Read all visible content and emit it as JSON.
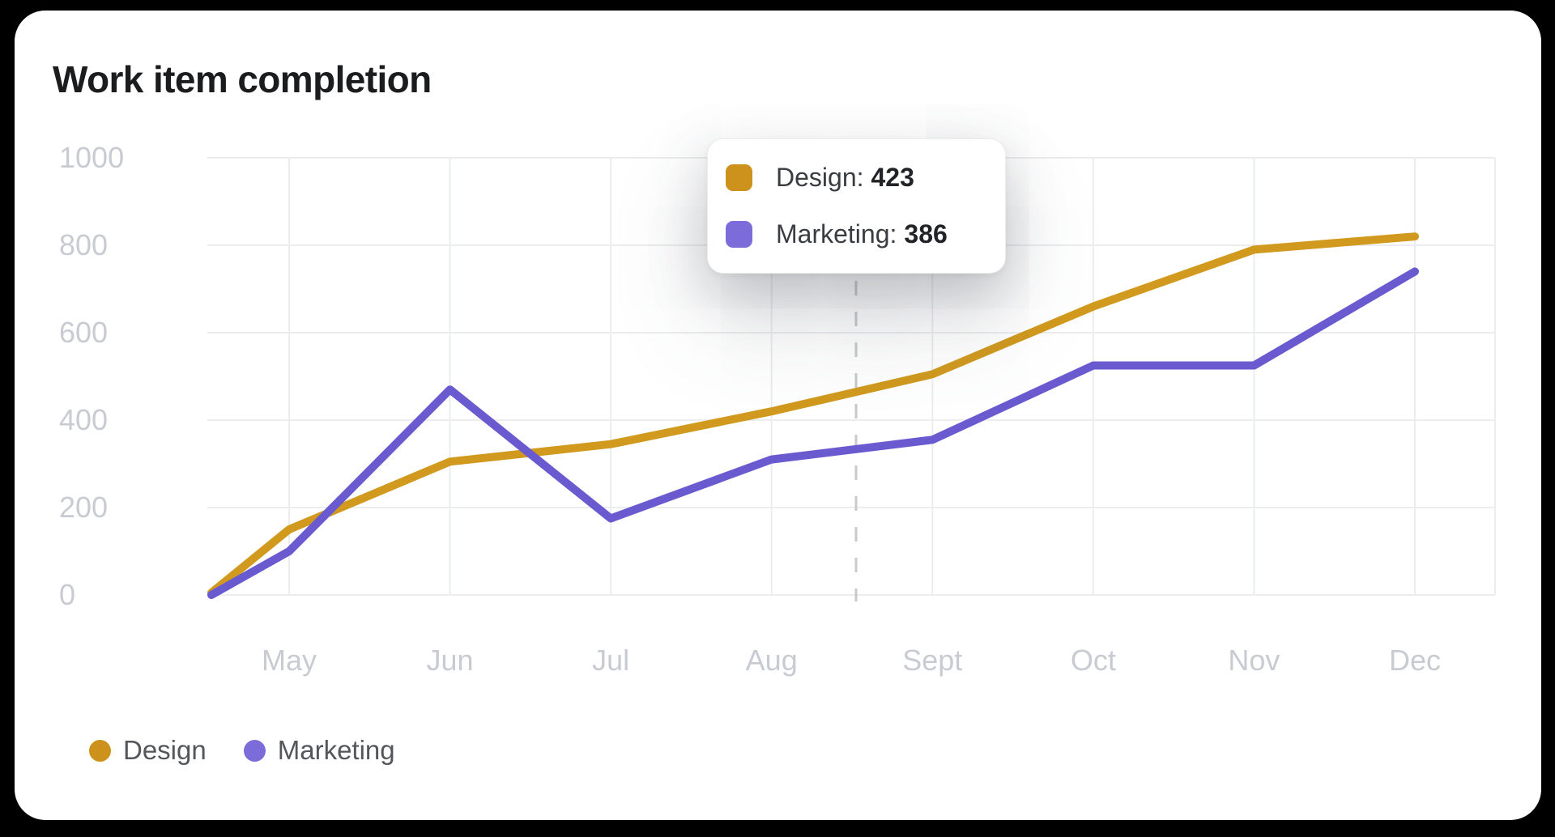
{
  "page": {
    "title": "Work item completion"
  },
  "chart_data": {
    "type": "line",
    "title": "Work item completion",
    "x_labels": [
      "May",
      "Jun",
      "Jul",
      "Aug",
      "Sept",
      "Oct",
      "Nov",
      "Dec"
    ],
    "first_point": "each series has an extra unlabeled starting point pinned to the left axis edge",
    "series": [
      {
        "name": "Design",
        "color": "#D19A1E",
        "values": [
          5,
          150,
          305,
          345,
          420,
          505,
          660,
          790,
          820
        ]
      },
      {
        "name": "Marketing",
        "color": "#6A5ACF",
        "values": [
          0,
          100,
          470,
          175,
          310,
          355,
          525,
          525,
          740
        ]
      }
    ],
    "ylim": [
      0,
      1000
    ],
    "yticks": [
      0,
      200,
      400,
      600,
      800,
      1000
    ],
    "grid": true,
    "legend_position": "bottom-left",
    "hover": {
      "dash_line": true,
      "values": {
        "Design": 423,
        "Marketing": 386
      }
    }
  },
  "tooltip": {
    "rows": [
      {
        "label": "Design:",
        "value": "423",
        "color": "#CC921C"
      },
      {
        "label": "Marketing:",
        "value": "386",
        "color": "#7C6CD9"
      }
    ]
  },
  "legend": {
    "items": [
      {
        "label": "Design",
        "color": "#CC921C"
      },
      {
        "label": "Marketing",
        "color": "#7C6CD9"
      }
    ]
  },
  "colors": {
    "background": "#000000",
    "card": "#FFFFFF",
    "grid": "#ECEDEF",
    "axis_label": "#C8CBD1",
    "legend_text": "#53565A",
    "dash": "#C6C9CD",
    "title": "#1B1C1E"
  }
}
